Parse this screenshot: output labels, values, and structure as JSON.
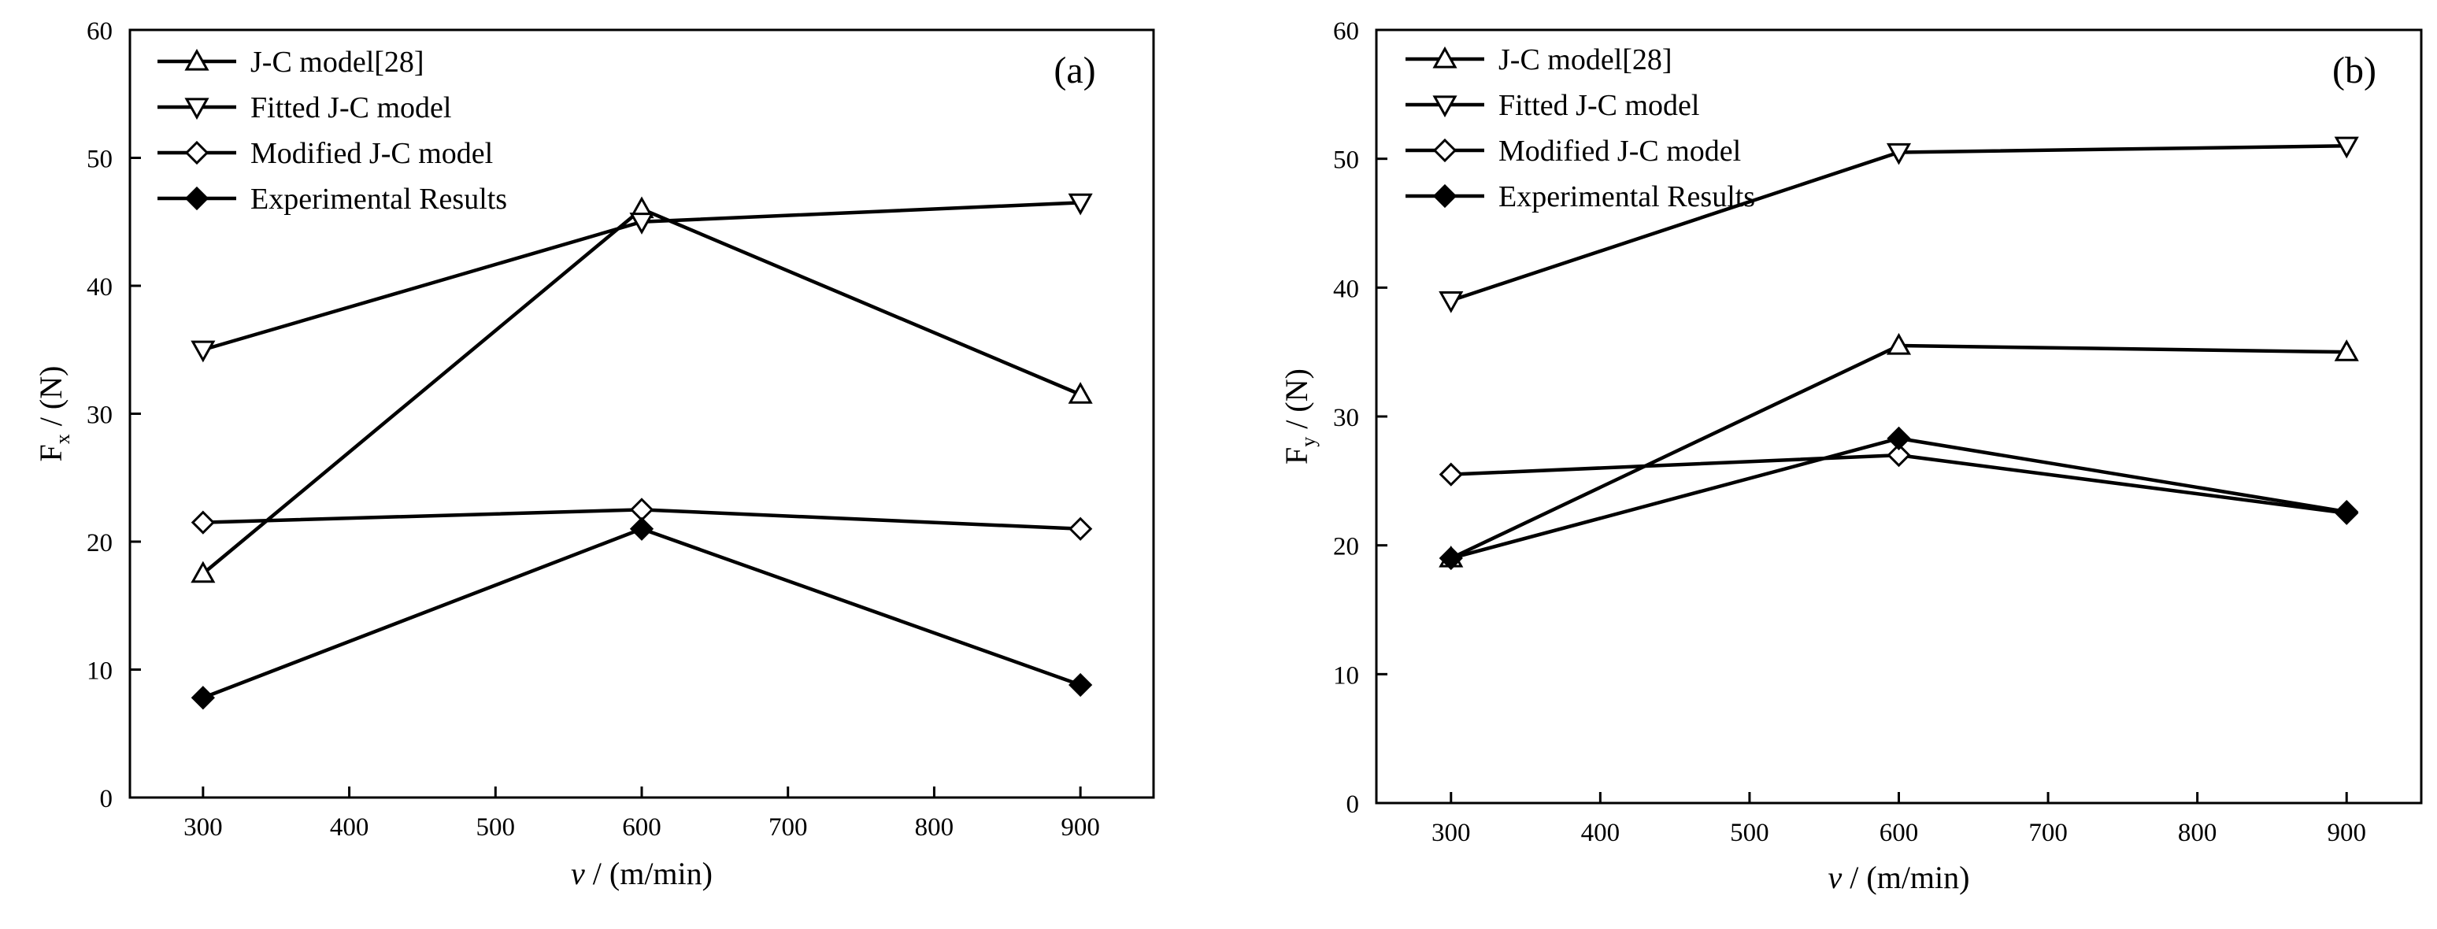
{
  "chart_data": [
    {
      "type": "line",
      "panel_label": "(a)",
      "xlabel_var": "v",
      "xlabel_unit": " / (m/min)",
      "ylabel_main": "F",
      "ylabel_sub": "x",
      "ylabel_unit": " / (N)",
      "x": [
        300,
        600,
        900
      ],
      "xlim": [
        250,
        950
      ],
      "ylim": [
        0,
        60
      ],
      "xticks": [
        300,
        400,
        500,
        600,
        700,
        800,
        900
      ],
      "yticks": [
        0,
        10,
        20,
        30,
        40,
        50,
        60
      ],
      "legend_position": "top-left",
      "series": [
        {
          "name": "J-C model[28]",
          "marker": "triangle-up",
          "values": [
            17.5,
            46,
            31.5
          ]
        },
        {
          "name": "Fitted J-C model",
          "marker": "triangle-down",
          "values": [
            35,
            45,
            46.5
          ]
        },
        {
          "name": "Modified J-C model",
          "marker": "diamond-open",
          "values": [
            21.5,
            22.5,
            21
          ]
        },
        {
          "name": "Experimental Results",
          "marker": "diamond-filled",
          "values": [
            7.8,
            21,
            8.8
          ]
        }
      ]
    },
    {
      "type": "line",
      "panel_label": "(b)",
      "xlabel_var": "v",
      "xlabel_unit": " / (m/min)",
      "ylabel_main": "F",
      "ylabel_sub": "y",
      "ylabel_unit": " / (N)",
      "x": [
        300,
        600,
        900
      ],
      "xlim": [
        250,
        950
      ],
      "ylim": [
        0,
        60
      ],
      "xticks": [
        300,
        400,
        500,
        600,
        700,
        800,
        900
      ],
      "yticks": [
        0,
        10,
        20,
        30,
        40,
        50,
        60
      ],
      "legend_position": "top-left",
      "series": [
        {
          "name": "J-C model[28]",
          "marker": "triangle-up",
          "values": [
            19,
            35.5,
            35
          ]
        },
        {
          "name": "Fitted J-C model",
          "marker": "triangle-down",
          "values": [
            39,
            50.5,
            51
          ]
        },
        {
          "name": "Modified J-C model",
          "marker": "diamond-open",
          "values": [
            25.5,
            27,
            22.5
          ]
        },
        {
          "name": "Experimental Results",
          "marker": "diamond-filled",
          "values": [
            19,
            28.3,
            22.6
          ]
        }
      ]
    }
  ]
}
